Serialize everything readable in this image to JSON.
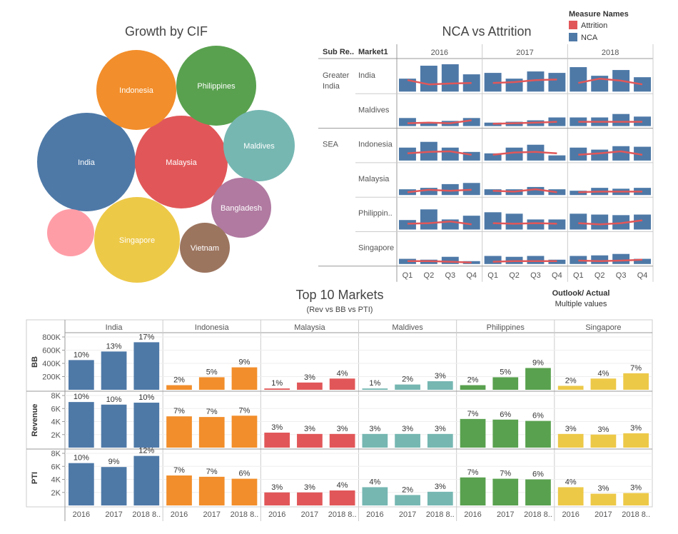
{
  "colors": {
    "India": "#4e79a7",
    "Indonesia": "#f28e2b",
    "Malaysia": "#e15759",
    "Maldives": "#76b7b2",
    "Philippines": "#59a14f",
    "Singapore": "#edc948",
    "Bangladesh": "#b07aa1",
    "Vietnam": "#9c755f",
    "Other": "#ff9da7",
    "attrition": "#e15759",
    "nca": "#4e79a7"
  },
  "legend": {
    "title": "Measure Names",
    "items": [
      {
        "label": "Attrition",
        "color": "#e15759"
      },
      {
        "label": "NCA",
        "color": "#4e79a7"
      }
    ]
  },
  "outlook": {
    "title": "Outlook/ Actual",
    "value": "Multiple values"
  },
  "chart_data": [
    {
      "type": "bubble",
      "title": "Growth by CIF",
      "bubbles": [
        {
          "label": "India",
          "color": "#4e79a7"
        },
        {
          "label": "Malaysia",
          "color": "#e15759"
        },
        {
          "label": "Singapore",
          "color": "#edc948"
        },
        {
          "label": "Indonesia",
          "color": "#f28e2b"
        },
        {
          "label": "Philippines",
          "color": "#59a14f"
        },
        {
          "label": "Maldives",
          "color": "#76b7b2"
        },
        {
          "label": "Bangladesh",
          "color": "#b07aa1"
        },
        {
          "label": "Vietnam",
          "color": "#9c755f"
        },
        {
          "label": "",
          "color": "#ff9da7"
        }
      ]
    },
    {
      "type": "bar",
      "title": "NCA vs Attrition",
      "row_headers": [
        "Sub Re..",
        "Market1"
      ],
      "years": [
        "2016",
        "2017",
        "2018"
      ],
      "quarters": [
        "Q1",
        "Q2",
        "Q3",
        "Q4"
      ],
      "rows": [
        {
          "group": "Greater India",
          "market": "India",
          "nca": [
            0.45,
            0.9,
            0.95,
            0.6,
            0.65,
            0.45,
            0.7,
            0.65,
            0.85,
            0.55,
            0.75,
            0.5
          ],
          "attrition": [
            0.4,
            0.25,
            0.28,
            0.3,
            0.3,
            0.33,
            0.4,
            0.42,
            0.3,
            0.45,
            0.38,
            0.25
          ]
        },
        {
          "group": "",
          "market": "Maldives",
          "nca": [
            0.28,
            0.12,
            0.18,
            0.28,
            0.12,
            0.15,
            0.2,
            0.3,
            0.3,
            0.3,
            0.42,
            0.33
          ],
          "attrition": [
            0.1,
            0.12,
            0.1,
            0.2,
            0.08,
            0.1,
            0.12,
            0.15,
            0.15,
            0.15,
            0.15,
            0.15
          ]
        },
        {
          "group": "SEA",
          "market": "Indonesia",
          "nca": [
            0.45,
            0.65,
            0.45,
            0.3,
            0.25,
            0.45,
            0.55,
            0.18,
            0.45,
            0.38,
            0.5,
            0.48
          ],
          "attrition": [
            0.25,
            0.3,
            0.32,
            0.2,
            0.2,
            0.28,
            0.3,
            0.25,
            0.2,
            0.25,
            0.32,
            0.2
          ]
        },
        {
          "group": "",
          "market": "Malaysia",
          "nca": [
            0.2,
            0.25,
            0.38,
            0.42,
            0.2,
            0.2,
            0.28,
            0.2,
            0.15,
            0.25,
            0.22,
            0.25
          ],
          "attrition": [
            0.1,
            0.18,
            0.15,
            0.18,
            0.15,
            0.12,
            0.2,
            0.1,
            0.1,
            0.12,
            0.12,
            0.12
          ]
        },
        {
          "group": "",
          "market": "Philippin..",
          "nca": [
            0.33,
            0.7,
            0.35,
            0.48,
            0.6,
            0.55,
            0.35,
            0.35,
            0.55,
            0.52,
            0.5,
            0.52
          ],
          "attrition": [
            0.2,
            0.22,
            0.28,
            0.18,
            0.22,
            0.2,
            0.22,
            0.2,
            0.22,
            0.18,
            0.22,
            0.32
          ]
        },
        {
          "group": "",
          "market": "Singapore",
          "nca": [
            0.18,
            0.15,
            0.25,
            0.1,
            0.28,
            0.25,
            0.28,
            0.15,
            0.28,
            0.3,
            0.35,
            0.18
          ],
          "attrition": [
            0.1,
            0.1,
            0.08,
            0.05,
            0.08,
            0.1,
            0.1,
            0.1,
            0.12,
            0.1,
            0.12,
            0.15
          ]
        }
      ]
    },
    {
      "type": "bar",
      "title": "Top 10 Markets",
      "subtitle": "(Rev vs BB vs PTI)",
      "markets": [
        "India",
        "Indonesia",
        "Malaysia",
        "Maldives",
        "Philippines",
        "Singapore"
      ],
      "x": [
        "2016",
        "2017",
        "2018 8.."
      ],
      "measures": [
        {
          "name": "BB",
          "ylim": [
            0,
            800000
          ],
          "ticks": [
            200000,
            400000,
            600000,
            800000
          ],
          "tick_labels": [
            "200K",
            "400K",
            "600K",
            "800K"
          ],
          "values": [
            [
              450000,
              580000,
              720000
            ],
            [
              70000,
              190000,
              340000
            ],
            [
              20000,
              110000,
              170000
            ],
            [
              20000,
              80000,
              130000
            ],
            [
              70000,
              190000,
              330000
            ],
            [
              60000,
              170000,
              250000
            ]
          ],
          "labels": [
            [
              "10%",
              "13%",
              "17%"
            ],
            [
              "2%",
              "5%",
              "9%"
            ],
            [
              "1%",
              "3%",
              "4%"
            ],
            [
              "1%",
              "2%",
              "3%"
            ],
            [
              "2%",
              "5%",
              "9%"
            ],
            [
              "2%",
              "4%",
              "7%"
            ]
          ]
        },
        {
          "name": "Revenue",
          "ylim": [
            0,
            8000
          ],
          "ticks": [
            2000,
            4000,
            6000,
            8000
          ],
          "tick_labels": [
            "2K",
            "4K",
            "6K",
            "8K"
          ],
          "values": [
            [
              7000,
              6600,
              6900
            ],
            [
              4800,
              4700,
              4900
            ],
            [
              2300,
              2100,
              2100
            ],
            [
              2100,
              2100,
              2100
            ],
            [
              4400,
              4300,
              4100
            ],
            [
              2100,
              2000,
              2200
            ]
          ],
          "labels": [
            [
              "10%",
              "10%",
              "10%"
            ],
            [
              "7%",
              "7%",
              "7%"
            ],
            [
              "3%",
              "3%",
              "3%"
            ],
            [
              "3%",
              "3%",
              "3%"
            ],
            [
              "7%",
              "6%",
              "6%"
            ],
            [
              "3%",
              "3%",
              "3%"
            ]
          ]
        },
        {
          "name": "PTI",
          "ylim": [
            0,
            8000
          ],
          "ticks": [
            2000,
            4000,
            6000,
            8000
          ],
          "tick_labels": [
            "2K",
            "4K",
            "6K",
            "8K"
          ],
          "values": [
            [
              6500,
              5900,
              7600
            ],
            [
              4600,
              4400,
              4100
            ],
            [
              2000,
              2000,
              2300
            ],
            [
              2800,
              1600,
              2100
            ],
            [
              4300,
              4100,
              4000
            ],
            [
              2800,
              1800,
              1900
            ]
          ],
          "labels": [
            [
              "10%",
              "9%",
              "12%"
            ],
            [
              "7%",
              "7%",
              "6%"
            ],
            [
              "3%",
              "3%",
              "4%"
            ],
            [
              "4%",
              "2%",
              "3%"
            ],
            [
              "7%",
              "7%",
              "6%"
            ],
            [
              "4%",
              "3%",
              "3%"
            ]
          ]
        }
      ]
    }
  ]
}
